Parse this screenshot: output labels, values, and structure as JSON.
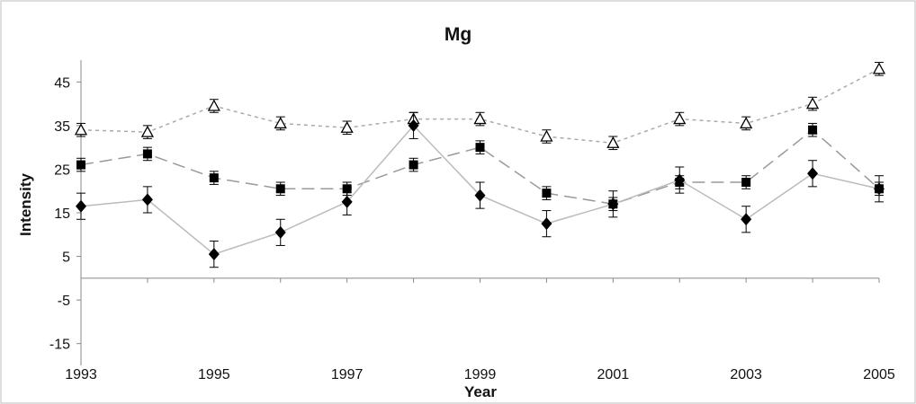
{
  "chart_data": {
    "type": "line",
    "title": "Mg",
    "xlabel": "Year",
    "ylabel": "Intensity",
    "x": [
      1993,
      1994,
      1995,
      1996,
      1997,
      1998,
      1999,
      2000,
      2001,
      2002,
      2003,
      2004,
      2005
    ],
    "xticks": [
      1993,
      1995,
      1997,
      1999,
      2001,
      2003,
      2005
    ],
    "yticks": [
      -15,
      -5,
      5,
      15,
      25,
      35,
      45
    ],
    "xlim": [
      1993,
      2005
    ],
    "ylim": [
      -20,
      50
    ],
    "grid": false,
    "legend": "none",
    "series": [
      {
        "marker": "triangle-open",
        "line_style": "dotted",
        "color": "#aaaaaa",
        "values": [
          34,
          33.5,
          39.5,
          35.5,
          34.5,
          36.5,
          36.5,
          32.5,
          31,
          36.5,
          35.5,
          40,
          48
        ],
        "errors": [
          1.5,
          1.5,
          1.5,
          1.5,
          1.5,
          1.5,
          1.5,
          1.5,
          1.5,
          1.5,
          1.5,
          1.5,
          1.5
        ]
      },
      {
        "marker": "square",
        "line_style": "dashed",
        "color": "#999999",
        "values": [
          26,
          28.5,
          23,
          20.5,
          20.5,
          26,
          30,
          19.5,
          17,
          22,
          22,
          34,
          20.5
        ],
        "errors": [
          1.5,
          1.5,
          1.5,
          1.5,
          1.5,
          1.5,
          1.5,
          1.5,
          1.5,
          1.5,
          1.5,
          1.5,
          1.5
        ]
      },
      {
        "marker": "diamond",
        "line_style": "solid",
        "color": "#bbbbbb",
        "values": [
          16.5,
          18,
          5.5,
          10.5,
          17.5,
          35,
          19,
          12.5,
          17,
          22.5,
          13.5,
          24,
          20.5
        ],
        "errors": [
          3,
          3,
          3,
          3,
          3,
          3,
          3,
          3,
          3,
          3,
          3,
          3,
          3
        ]
      }
    ]
  }
}
